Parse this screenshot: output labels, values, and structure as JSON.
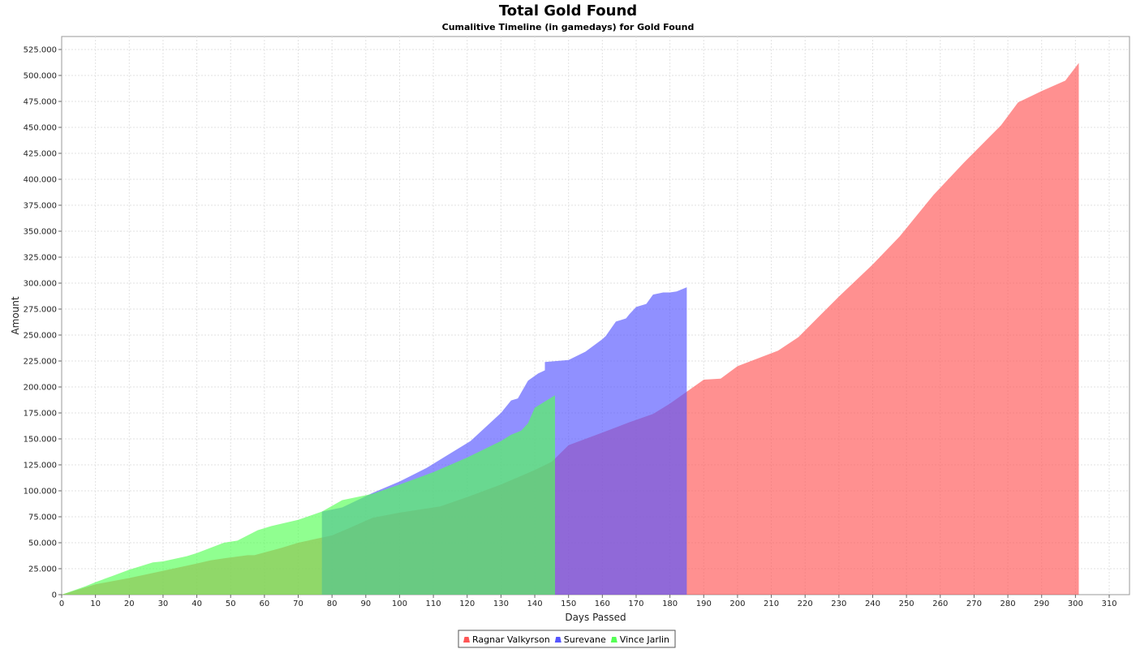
{
  "chart_data": {
    "type": "area",
    "title": "Total Gold Found",
    "subtitle": "Cumalitive Timeline (in gamedays) for Gold Found",
    "xlabel": "Days Passed",
    "ylabel": "Amount",
    "xlim": [
      0,
      316
    ],
    "ylim": [
      0,
      537500
    ],
    "xticks": [
      0,
      10,
      20,
      30,
      40,
      50,
      60,
      70,
      80,
      90,
      100,
      110,
      120,
      130,
      140,
      150,
      160,
      170,
      180,
      190,
      200,
      210,
      220,
      230,
      240,
      250,
      260,
      270,
      280,
      290,
      300,
      310
    ],
    "yticks": [
      0,
      25000,
      50000,
      75000,
      100000,
      125000,
      150000,
      175000,
      200000,
      225000,
      250000,
      275000,
      300000,
      325000,
      350000,
      375000,
      400000,
      425000,
      450000,
      475000,
      500000,
      525000
    ],
    "ytick_labels": [
      "0",
      "25.000",
      "50.000",
      "75.000",
      "100.000",
      "125.000",
      "150.000",
      "175.000",
      "200.000",
      "225.000",
      "250.000",
      "275.000",
      "300.000",
      "325.000",
      "350.000",
      "375.000",
      "400.000",
      "425.000",
      "450.000",
      "475.000",
      "500.000",
      "525.000"
    ],
    "grid": true,
    "legend_position": "bottom",
    "series": [
      {
        "name": "Ragnar Valkyrson",
        "color": "#ff5555",
        "points": [
          [
            0,
            0
          ],
          [
            10,
            10000
          ],
          [
            15,
            13000
          ],
          [
            20,
            16000
          ],
          [
            30,
            23000
          ],
          [
            40,
            30000
          ],
          [
            44,
            33000
          ],
          [
            48,
            35000
          ],
          [
            55,
            38000
          ],
          [
            57,
            38000
          ],
          [
            65,
            45000
          ],
          [
            70,
            50000
          ],
          [
            77,
            55000
          ],
          [
            80,
            57000
          ],
          [
            85,
            64000
          ],
          [
            92,
            74000
          ],
          [
            100,
            79000
          ],
          [
            112,
            85000
          ],
          [
            120,
            94000
          ],
          [
            130,
            106000
          ],
          [
            140,
            120000
          ],
          [
            145,
            128000
          ],
          [
            150,
            144000
          ],
          [
            160,
            156000
          ],
          [
            168,
            166000
          ],
          [
            175,
            174000
          ],
          [
            180,
            184000
          ],
          [
            190,
            207000
          ],
          [
            195,
            208000
          ],
          [
            200,
            220000
          ],
          [
            212,
            235000
          ],
          [
            218,
            248000
          ],
          [
            230,
            287000
          ],
          [
            240,
            318000
          ],
          [
            248,
            345000
          ],
          [
            258,
            385000
          ],
          [
            267,
            416000
          ],
          [
            278,
            452000
          ],
          [
            283,
            474000
          ],
          [
            290,
            485000
          ],
          [
            297,
            495000
          ],
          [
            301,
            512000
          ]
        ]
      },
      {
        "name": "Surevane",
        "color": "#5555ff",
        "points": [
          [
            77,
            80000
          ],
          [
            83,
            84000
          ],
          [
            92,
            98000
          ],
          [
            100,
            109000
          ],
          [
            108,
            122000
          ],
          [
            113,
            132000
          ],
          [
            121,
            148000
          ],
          [
            130,
            175000
          ],
          [
            133,
            187000
          ],
          [
            135,
            189000
          ],
          [
            138,
            206000
          ],
          [
            141,
            213000
          ],
          [
            143,
            216000
          ],
          [
            143,
            224000
          ],
          [
            150,
            226000
          ],
          [
            155,
            234000
          ],
          [
            160,
            246000
          ],
          [
            161,
            249000
          ],
          [
            164,
            263000
          ],
          [
            167,
            266000
          ],
          [
            168,
            270000
          ],
          [
            170,
            277000
          ],
          [
            173,
            280000
          ],
          [
            175,
            289000
          ],
          [
            178,
            291000
          ],
          [
            180,
            291000
          ],
          [
            182,
            292000
          ],
          [
            185,
            296000
          ]
        ]
      },
      {
        "name": "Vince Jarlin",
        "color": "#55ff55",
        "points": [
          [
            0,
            0
          ],
          [
            7,
            8000
          ],
          [
            10,
            12000
          ],
          [
            15,
            18000
          ],
          [
            20,
            24000
          ],
          [
            27,
            31000
          ],
          [
            30,
            32000
          ],
          [
            37,
            37000
          ],
          [
            40,
            40000
          ],
          [
            48,
            50000
          ],
          [
            52,
            52000
          ],
          [
            58,
            62000
          ],
          [
            62,
            66000
          ],
          [
            70,
            72000
          ],
          [
            77,
            80000
          ],
          [
            83,
            91000
          ],
          [
            92,
            97000
          ],
          [
            100,
            106000
          ],
          [
            110,
            118000
          ],
          [
            120,
            132000
          ],
          [
            130,
            148000
          ],
          [
            133,
            154000
          ],
          [
            136,
            158000
          ],
          [
            138,
            165000
          ],
          [
            140,
            180000
          ],
          [
            146,
            192000
          ]
        ]
      }
    ]
  }
}
